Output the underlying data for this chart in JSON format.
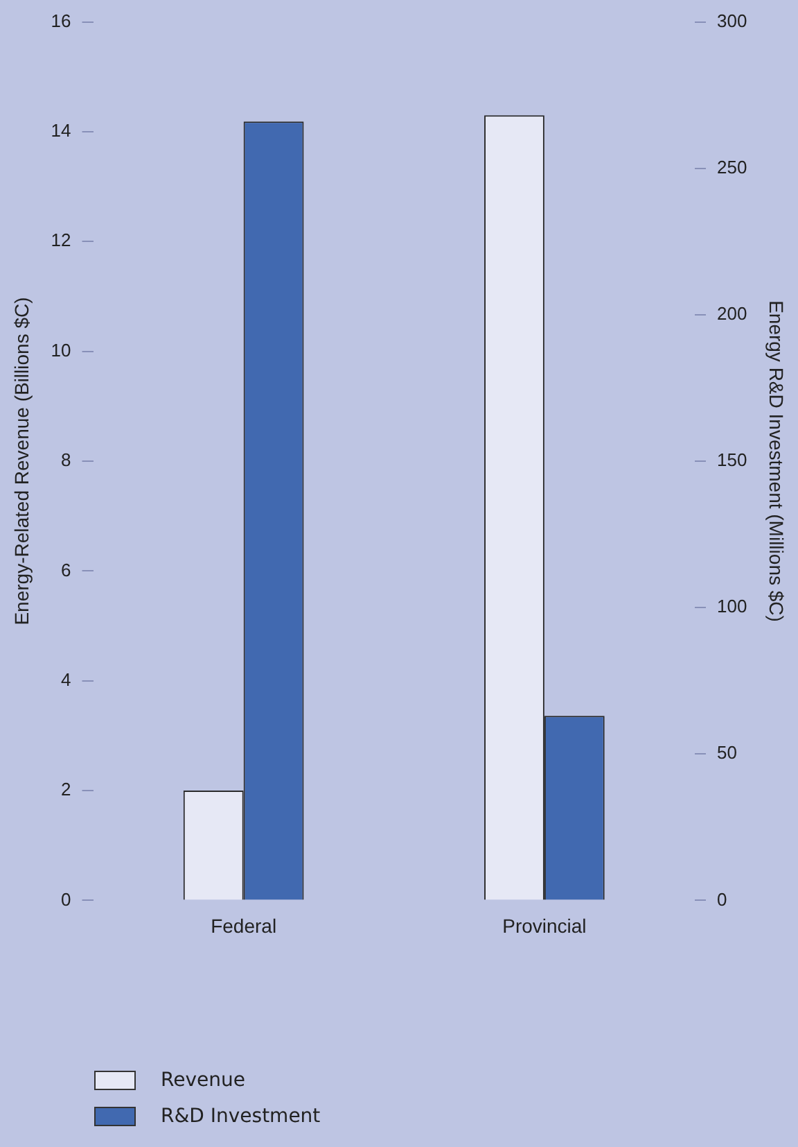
{
  "chart_data": {
    "type": "bar",
    "categories": [
      "Federal",
      "Provincial"
    ],
    "series": [
      {
        "name": "Revenue",
        "color": "#e6e8f5",
        "values": [
          2.0,
          14.3
        ]
      },
      {
        "name": "R&D Investment",
        "color": "#4169b0",
        "values": [
          266,
          63
        ],
        "axis": "y2"
      }
    ],
    "ylabel": "Energy-Related Revenue (Billions $C)",
    "y2label": "Energy R&D Investment (Millions $C)",
    "ylim": [
      0,
      16
    ],
    "yticks": [
      0,
      2,
      4,
      6,
      8,
      10,
      12,
      14,
      16
    ],
    "y2lim": [
      0,
      300
    ],
    "y2ticks": [
      0,
      50,
      100,
      150,
      200,
      250,
      300
    ],
    "grid": false,
    "legend": "bottom left"
  }
}
